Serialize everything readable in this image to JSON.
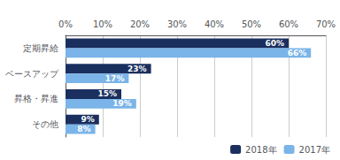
{
  "chart_data": {
    "type": "bar",
    "orientation": "horizontal",
    "categories": [
      "定期昇給",
      "ベースアップ",
      "昇格・昇進",
      "その他"
    ],
    "series": [
      {
        "name": "2018年",
        "color": "#1a2f5e",
        "values": [
          60,
          23,
          15,
          9
        ],
        "value_labels": [
          "60%",
          "23%",
          "15%",
          "9%"
        ]
      },
      {
        "name": "2017年",
        "color": "#7ab4e8",
        "values": [
          66,
          17,
          19,
          8
        ],
        "value_labels": [
          "66%",
          "17%",
          "19%",
          "8%"
        ]
      }
    ],
    "xlim": [
      0,
      70
    ],
    "xticks": [
      {
        "value": 0,
        "label": "0%"
      },
      {
        "value": 10,
        "label": "10%"
      },
      {
        "value": 20,
        "label": "20%"
      },
      {
        "value": 30,
        "label": "30%"
      },
      {
        "value": 40,
        "label": "40%"
      },
      {
        "value": 50,
        "label": "50%"
      },
      {
        "value": 60,
        "label": "60%"
      },
      {
        "value": 70,
        "label": "70%"
      }
    ],
    "grid": true,
    "legend": "lower right",
    "data_labels": true
  }
}
